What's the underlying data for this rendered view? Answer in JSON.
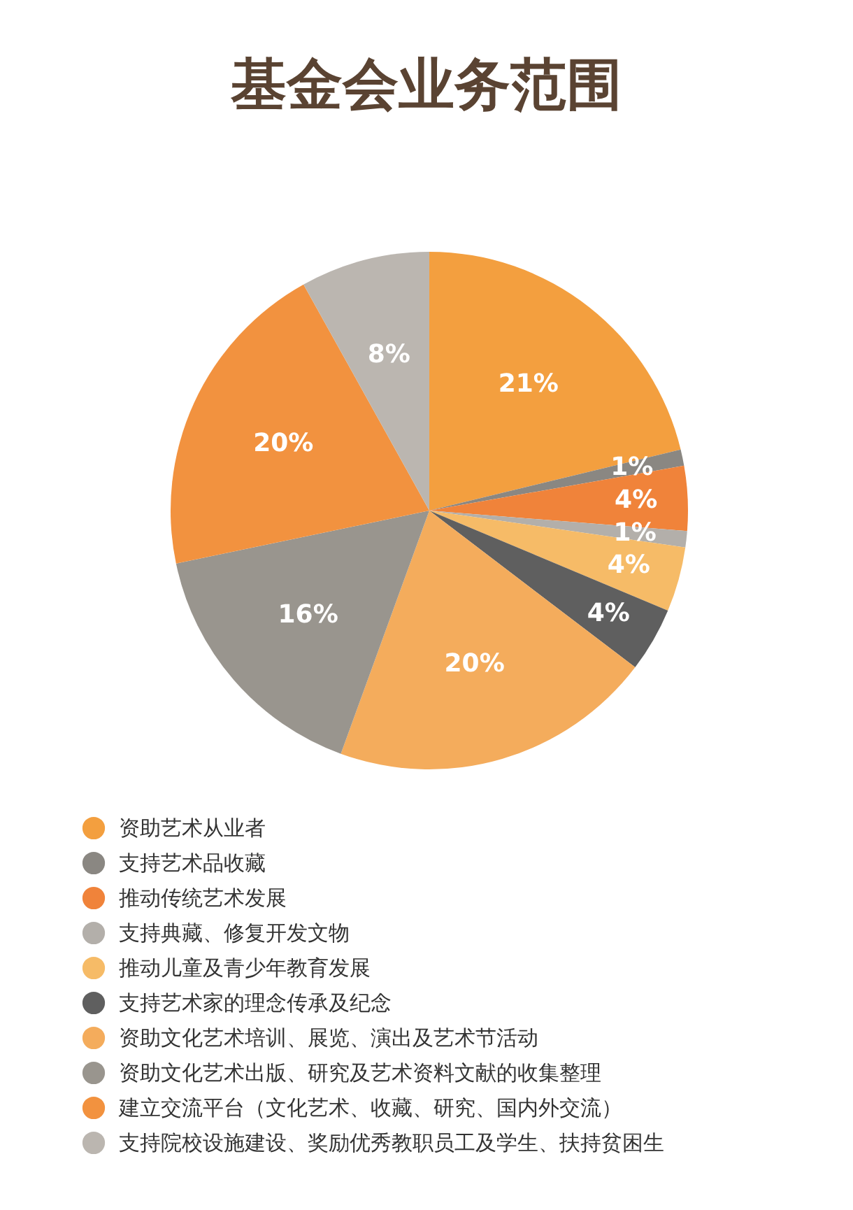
{
  "chart_data": {
    "type": "pie",
    "title": "基金会业务范围",
    "categories": [
      "资助艺术从业者",
      "支持艺术品收藏",
      "推动传统艺术发展",
      "支持典藏、修复开发文物",
      "推动儿童及青少年教育发展",
      "支持艺术家的理念传承及纪念",
      "资助文化艺术培训、展览、演出及艺术节活动",
      "资助文化艺术出版、研究及艺术资料文献的收集整理",
      "建立交流平台（文化艺术、收藏、研究、国内外交流）",
      "支持院校设施建设、奖励优秀教职员工及学生、扶持贫困生"
    ],
    "values": [
      21,
      1,
      4,
      1,
      4,
      4,
      20,
      16,
      20,
      8
    ],
    "colors": [
      "#f39f3f",
      "#8a8782",
      "#f0833a",
      "#b3afaa",
      "#f6bb67",
      "#5f5f5f",
      "#f4ac5c",
      "#99958e",
      "#f2923f",
      "#bbb6b0"
    ],
    "value_labels": [
      "21%",
      "1%",
      "4%",
      "1%",
      "4%",
      "4%",
      "20%",
      "16%",
      "20%",
      "8%"
    ],
    "legend": "bottom"
  }
}
